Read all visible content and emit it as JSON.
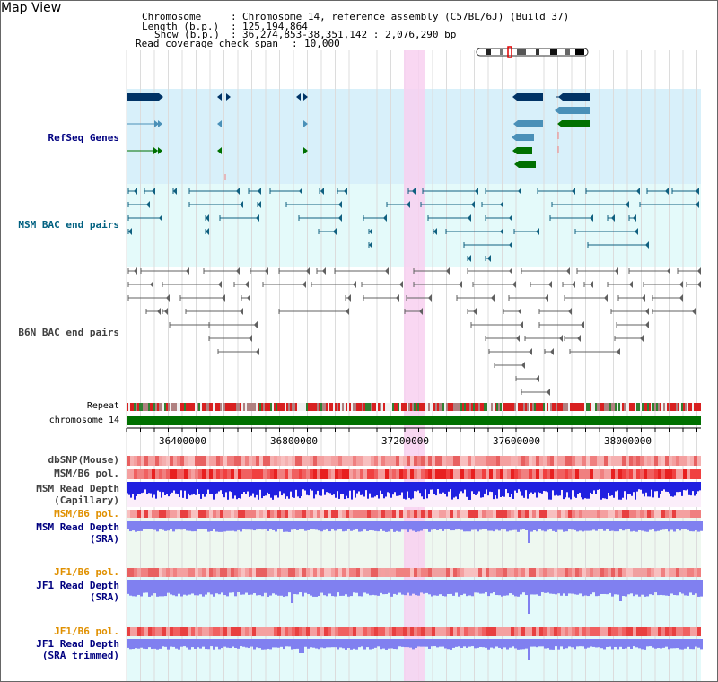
{
  "header": {
    "title": "Map View",
    "chromosome_label": "Chromosome",
    "chromosome_value": "Chromosome 14, reference assembly (C57BL/6J) (Build 37)",
    "length_label": "Length (b.p.)",
    "length_value": "125,194,864",
    "show_label": "Show (b.p.)",
    "show_value": "36,274,853-38,351,142 : 2,076,290 bp",
    "coverage_label": "Read coverage check span",
    "coverage_value": "10,000"
  },
  "tracks": {
    "refseq": "RefSeq Genes",
    "msm_bac": "MSM BAC end pairs",
    "b6n_bac": "B6N BAC end pairs",
    "repeat": "Repeat",
    "chromosome": "chromosome 14",
    "dbsnp": "dbSNP(Mouse)",
    "msm_b6_pol_1": "MSM/B6 pol.",
    "msm_depth_cap_1": "MSM Read Depth",
    "msm_depth_cap_2": "(Capillary)",
    "msm_b6_pol_2": "MSM/B6 pol.",
    "msm_depth_sra_1": "MSM Read Depth",
    "msm_depth_sra_2": "(SRA)",
    "jf1_pol_1": "JF1/B6 pol.",
    "jf1_depth_sra_1": "JF1 Read Depth",
    "jf1_depth_sra_2": "(SRA)",
    "jf1_pol_2": "JF1/B6 pol.",
    "jf1_depth_trim_1": "JF1 Read Depth",
    "jf1_depth_trim_2": "(SRA trimmed)"
  },
  "axis": {
    "ticks": [
      "36400000",
      "36800000",
      "37200000",
      "37600000",
      "38000000"
    ]
  },
  "colors": {
    "label_blue": "#000080",
    "label_teal": "#006080",
    "label_gray": "#404040",
    "label_orange": "#e09000",
    "label_dark": "#404040",
    "highlight": "#f8d0f0",
    "refseq_bg": "#d8f0fa",
    "bac_bg": "#e4fafa",
    "gene_dark": "#003366",
    "gene_mid": "#4a90b8",
    "gene_green": "#007000",
    "chrom_green": "#007000",
    "repeat_red": "#d82020",
    "depth_blue": "#2020e0",
    "depth_sra": "#8080f0"
  }
}
